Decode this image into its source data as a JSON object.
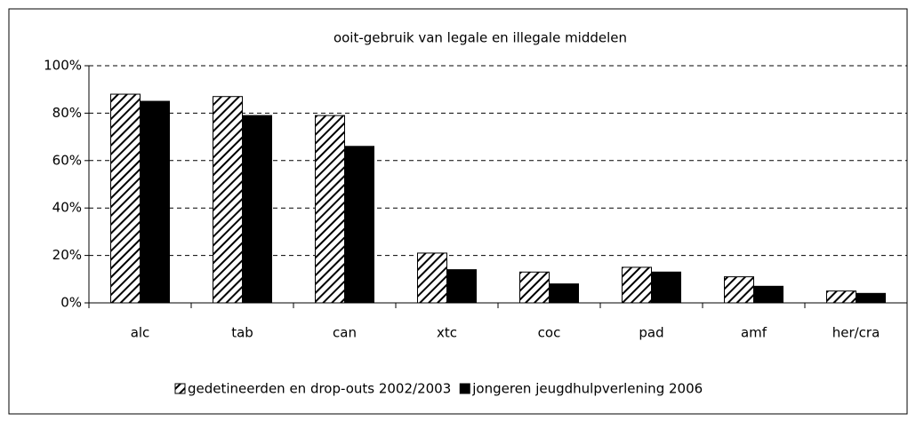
{
  "chart_data": {
    "type": "bar",
    "title": "ooit-gebruik van legale en illegale middelen",
    "categories": [
      "alc",
      "tab",
      "can",
      "xtc",
      "coc",
      "pad",
      "amf",
      "her/cra"
    ],
    "series": [
      {
        "name": "gedetineerden en drop-outs 2002/2003",
        "color": "hatched",
        "values": [
          88,
          87,
          79,
          21,
          13,
          15,
          11,
          5
        ]
      },
      {
        "name": "jongeren jeugdhulpverlening 2006",
        "color": "#000000",
        "values": [
          85,
          79,
          66,
          14,
          8,
          13,
          7,
          4
        ]
      }
    ],
    "ylim": [
      0,
      100
    ],
    "yticks": [
      {
        "value": 0,
        "label": "0%"
      },
      {
        "value": 20,
        "label": "20%"
      },
      {
        "value": 40,
        "label": "40%"
      },
      {
        "value": 60,
        "label": "60%"
      },
      {
        "value": 80,
        "label": "80%"
      },
      {
        "value": 100,
        "label": "100%"
      }
    ],
    "grid": true,
    "legend": "bottom"
  }
}
